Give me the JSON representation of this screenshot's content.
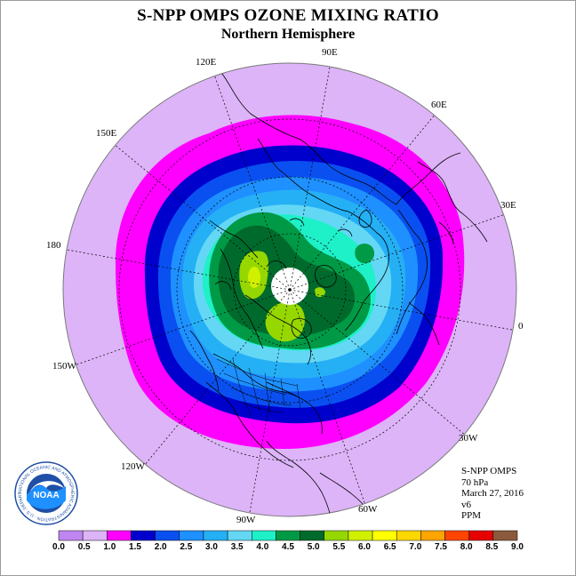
{
  "title": "S-NPP OMPS OZONE MIXING RATIO",
  "subtitle": "Northern Hemisphere",
  "longitude_labels": [
    "90E",
    "60E",
    "30E",
    "0",
    "30W",
    "60W",
    "90W",
    "120W",
    "150W",
    "180",
    "150E",
    "120E"
  ],
  "info": {
    "instrument": "S-NPP OMPS",
    "pressure": "70 hPa",
    "date": "March 27, 2016",
    "version": "v6",
    "units": "PPM"
  },
  "logo": {
    "text": "NOAA",
    "ring_text": "NATIONAL OCEANIC AND ATMOSPHERIC ADMINISTRATION · U.S. DEPARTMENT OF COMMERCE"
  },
  "colorbar": {
    "ticks": [
      "0.0",
      "0.5",
      "1.0",
      "1.5",
      "2.0",
      "2.5",
      "3.0",
      "3.5",
      "4.0",
      "4.5",
      "5.0",
      "5.5",
      "6.0",
      "6.5",
      "7.0",
      "7.5",
      "8.0",
      "8.5",
      "9.0"
    ],
    "colors": [
      "#bf86f2",
      "#dcb4f7",
      "#ff00ff",
      "#0000cd",
      "#0a50f0",
      "#1e90ff",
      "#25b0f5",
      "#64d7f5",
      "#1ef0c8",
      "#009a46",
      "#006a2c",
      "#96d700",
      "#d0f000",
      "#ffff00",
      "#ffd700",
      "#ffa500",
      "#ff4500",
      "#e60000",
      "#8b5a3c"
    ]
  }
}
